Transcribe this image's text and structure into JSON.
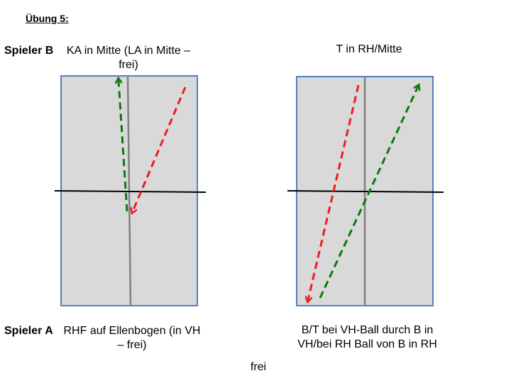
{
  "title": "Übung 5:",
  "player_b": {
    "label": "Spieler B",
    "instruction": "KA in Mitte (LA in Mitte – frei)"
  },
  "right_top_text": "T in RH/Mitte",
  "player_a": {
    "label": "Spieler A",
    "instruction": "RHF auf Ellenbogen (in VH – frei)"
  },
  "right_bottom_text": "B/T bei VH-Ball durch B in VH/bei RH Ball von B in RH",
  "bottom_center_text": "frei",
  "colors": {
    "table_fill": "#d9d9d9",
    "table_border": "#4f81bd",
    "center_line": "#808080",
    "net": "#000000",
    "green_arrow": "#0a7a0a",
    "red_arrow": "#ee1c1c"
  }
}
